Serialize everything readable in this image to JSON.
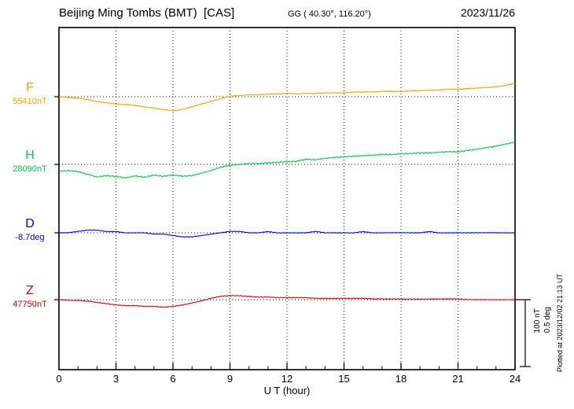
{
  "header": {
    "title": "Beijing Ming Tombs (BMT)  [CAS]",
    "coords": "GG ( 40.30°, 116.20°)",
    "date": "2023/11/26"
  },
  "scale_bar": {
    "nt_label": "100 nT",
    "deg_label": "0.5 deg"
  },
  "plotted_note": "Plotted at 2023/12/02 21:13 UT",
  "chart_data": {
    "type": "line",
    "title": "Beijing Ming Tombs (BMT) [CAS] magnetogram 2023/11/26",
    "xlabel": "U T (hour)",
    "x_range": [
      0,
      24
    ],
    "x_major_ticks": [
      0,
      3,
      6,
      9,
      12,
      15,
      18,
      21,
      24
    ],
    "x_minor_step_hours": 1,
    "sample_step_hours": 0.5,
    "scale": {
      "nT_per_bar": 100,
      "deg_per_bar": 0.5
    },
    "series": [
      {
        "name": "F",
        "unit": "nT",
        "baseline_value": 55410,
        "baseline_label": "55410nT",
        "color": "#ffa000",
        "offsets": [
          0,
          -1,
          -2,
          -4,
          -7,
          -9,
          -11,
          -12,
          -13,
          -15,
          -17,
          -19,
          -21,
          -19,
          -15,
          -11,
          -7,
          -3,
          1,
          2,
          3,
          3,
          4,
          4,
          5,
          4,
          5,
          5,
          6,
          6,
          6,
          7,
          7,
          7,
          8,
          8,
          8,
          9,
          9,
          10,
          10,
          11,
          11,
          12,
          13,
          14,
          15,
          17,
          20
        ]
      },
      {
        "name": "H",
        "unit": "nT",
        "baseline_value": 28090,
        "baseline_label": "28090nT",
        "color": "#00cc44",
        "offsets": [
          -10,
          -9,
          -11,
          -15,
          -19,
          -17,
          -18,
          -20,
          -17,
          -19,
          -16,
          -18,
          -16,
          -18,
          -17,
          -13,
          -9,
          -4,
          -1,
          0,
          1,
          1,
          2,
          3,
          4,
          5,
          8,
          7,
          9,
          10,
          11,
          12,
          13,
          14,
          15,
          15,
          16,
          16,
          17,
          17,
          18,
          19,
          19,
          21,
          23,
          25,
          27,
          30,
          33
        ]
      },
      {
        "name": "D",
        "unit": "deg",
        "baseline_value": -8.7,
        "baseline_label": "-8.7deg",
        "color": "#0000dd",
        "offsets": [
          0,
          0,
          0.01,
          0.02,
          0.02,
          0.01,
          0.01,
          0,
          0,
          0,
          -0.01,
          -0.01,
          -0.02,
          -0.03,
          -0.03,
          -0.02,
          -0.01,
          0,
          0.01,
          0.01,
          0,
          0,
          0.01,
          0,
          0,
          0,
          0,
          0.01,
          0,
          0,
          0,
          0,
          0.01,
          0,
          0,
          0,
          0,
          0,
          0,
          0.01,
          0,
          0,
          0,
          0,
          0,
          0,
          0,
          0,
          0
        ]
      },
      {
        "name": "Z",
        "unit": "nT",
        "baseline_value": 47750,
        "baseline_label": "47750nT",
        "color": "#e00000",
        "offsets": [
          0,
          -1,
          -1,
          -2,
          -4,
          -6,
          -8,
          -9,
          -9,
          -10,
          -10,
          -11,
          -10,
          -8,
          -5,
          -2,
          2,
          5,
          6,
          6,
          5,
          4,
          4,
          3,
          3,
          3,
          3,
          2,
          2,
          2,
          2,
          2,
          2,
          1,
          1,
          1,
          1,
          1,
          1,
          1,
          1,
          1,
          1,
          0,
          0,
          0,
          0,
          0,
          0
        ]
      }
    ]
  }
}
